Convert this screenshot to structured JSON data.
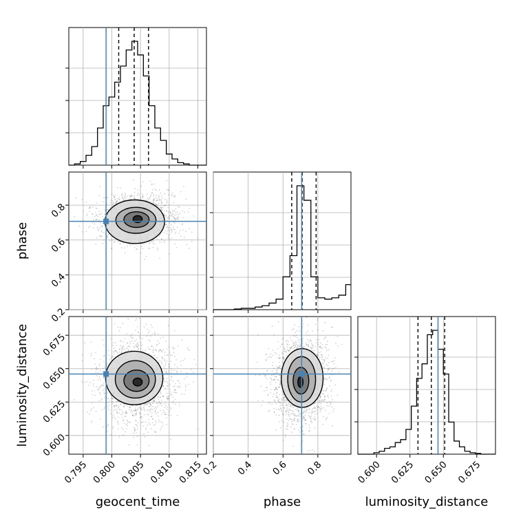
{
  "chart_data": {
    "type": "corner",
    "parameters": [
      {
        "name": "geocent_time",
        "xlabel": "geocent_time",
        "range": [
          0.7925,
          0.8165
        ],
        "ticks": [
          "0.795",
          "0.800",
          "0.805",
          "0.810",
          "0.815"
        ],
        "truth": 0.799
      },
      {
        "name": "phase",
        "xlabel": "phase",
        "ylabel": "phase",
        "range": [
          0.2,
          0.99
        ],
        "ticks": [
          "0.2",
          "0.4",
          "0.6",
          "0.8"
        ],
        "truth": 0.707
      },
      {
        "name": "luminosity_distance",
        "xlabel": "luminosity_distance",
        "ylabel": "luminosity_distance",
        "range": [
          0.586,
          0.689
        ],
        "ticks": [
          "0.600",
          "0.625",
          "0.650",
          "0.675"
        ],
        "truth": 0.646
      }
    ],
    "histograms": [
      {
        "parameter": "geocent_time",
        "quantiles": [
          0.8012,
          0.8039,
          0.8064
        ],
        "bin_edges": [
          0.7925,
          0.7935,
          0.7945,
          0.7955,
          0.7965,
          0.7975,
          0.7985,
          0.7995,
          0.8005,
          0.8015,
          0.8025,
          0.8035,
          0.8045,
          0.8055,
          0.8065,
          0.8075,
          0.8085,
          0.8095,
          0.8105,
          0.8115,
          0.8125,
          0.8135,
          0.8145,
          0.8155,
          0.8165
        ],
        "counts": [
          0.0,
          0.01,
          0.03,
          0.08,
          0.15,
          0.3,
          0.48,
          0.55,
          0.67,
          0.8,
          0.93,
          1.0,
          0.89,
          0.72,
          0.48,
          0.3,
          0.2,
          0.09,
          0.05,
          0.02,
          0.01,
          0.0,
          0.0,
          0.0
        ]
      },
      {
        "parameter": "phase",
        "quantiles": [
          0.65,
          0.71,
          0.79
        ],
        "bin_edges": [
          0.2,
          0.24,
          0.28,
          0.32,
          0.36,
          0.4,
          0.44,
          0.48,
          0.52,
          0.56,
          0.6,
          0.64,
          0.68,
          0.72,
          0.76,
          0.8,
          0.84,
          0.88,
          0.92,
          0.96,
          0.99
        ],
        "counts": [
          0.0,
          0.0,
          0.0,
          0.005,
          0.01,
          0.01,
          0.02,
          0.03,
          0.05,
          0.08,
          0.25,
          0.41,
          0.94,
          0.83,
          0.25,
          0.09,
          0.08,
          0.09,
          0.11,
          0.19
        ]
      },
      {
        "parameter": "luminosity_distance",
        "quantiles": [
          0.631,
          0.641,
          0.651
        ],
        "bin_edges": [
          0.586,
          0.59,
          0.594,
          0.598,
          0.602,
          0.606,
          0.61,
          0.614,
          0.618,
          0.622,
          0.626,
          0.63,
          0.634,
          0.638,
          0.642,
          0.646,
          0.65,
          0.654,
          0.658,
          0.662,
          0.666,
          0.67,
          0.674,
          0.678,
          0.682,
          0.686,
          0.689
        ],
        "counts": [
          0.0,
          0.0,
          0.0,
          0.01,
          0.02,
          0.04,
          0.05,
          0.08,
          0.1,
          0.17,
          0.33,
          0.52,
          0.62,
          0.82,
          0.85,
          0.72,
          0.55,
          0.22,
          0.09,
          0.05,
          0.02,
          0.01,
          0.005,
          0.0,
          0.0,
          0.0
        ]
      }
    ],
    "joint_panels": [
      {
        "x": "geocent_time",
        "y": "phase",
        "mode": [
          0.8045,
          0.72
        ],
        "spread": [
          0.0024,
          0.05
        ],
        "contours": [
          {
            "cx": 0.8045,
            "cy": 0.72,
            "rx": 0.0008,
            "ry": 0.02
          },
          {
            "cx": 0.8043,
            "cy": 0.717,
            "rx": 0.0022,
            "ry": 0.045
          },
          {
            "cx": 0.8042,
            "cy": 0.713,
            "rx": 0.0035,
            "ry": 0.075
          },
          {
            "cx": 0.804,
            "cy": 0.705,
            "rx": 0.0052,
            "ry": 0.125
          }
        ]
      },
      {
        "x": "geocent_time",
        "y": "luminosity_distance",
        "mode": [
          0.8045,
          0.64
        ],
        "spread": [
          0.0025,
          0.012
        ],
        "contours": [
          {
            "cx": 0.8045,
            "cy": 0.64,
            "rx": 0.0008,
            "ry": 0.003
          },
          {
            "cx": 0.8043,
            "cy": 0.641,
            "rx": 0.0022,
            "ry": 0.008
          },
          {
            "cx": 0.8041,
            "cy": 0.642,
            "rx": 0.0035,
            "ry": 0.014
          },
          {
            "cx": 0.8039,
            "cy": 0.643,
            "rx": 0.005,
            "ry": 0.02
          }
        ]
      },
      {
        "x": "phase",
        "y": "luminosity_distance",
        "mode": [
          0.705,
          0.641
        ],
        "spread": [
          0.06,
          0.012
        ],
        "contours": [
          {
            "cx": 0.7,
            "cy": 0.64,
            "rx": 0.015,
            "ry": 0.004
          },
          {
            "cx": 0.703,
            "cy": 0.641,
            "rx": 0.045,
            "ry": 0.01
          },
          {
            "cx": 0.707,
            "cy": 0.642,
            "rx": 0.08,
            "ry": 0.017
          },
          {
            "cx": 0.71,
            "cy": 0.643,
            "rx": 0.12,
            "ry": 0.022
          }
        ]
      }
    ],
    "grid": true,
    "truth_color": "#4682b4",
    "contour_color": "#000000",
    "hist_color": "#000000"
  }
}
